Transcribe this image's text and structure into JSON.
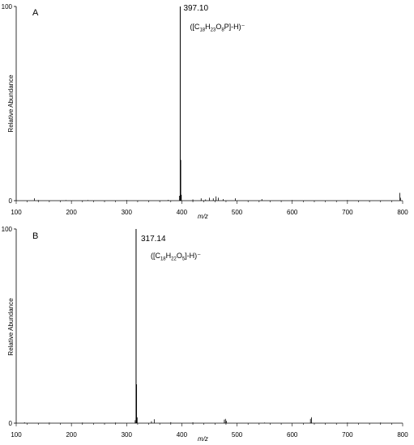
{
  "chart_data": [
    {
      "type": "line",
      "panel_label": "A",
      "xlabel": "m/z",
      "ylabel": "Relative Abundance",
      "xlim": [
        100,
        800
      ],
      "ylim": [
        0,
        100
      ],
      "xticks": [
        "100",
        "200",
        "300",
        "400",
        "500",
        "600",
        "700",
        "800"
      ],
      "yticks": [
        "0",
        "100"
      ],
      "peak_label": "397.10",
      "formula": {
        "prefix": "([C",
        "parts": [
          [
            "18",
            "H"
          ],
          [
            "23",
            "O"
          ],
          [
            "8",
            "P]-H)"
          ]
        ],
        "suffix": "⁻"
      },
      "peaks": [
        {
          "x": 133,
          "y": 1.2
        },
        {
          "x": 140,
          "y": 0.3
        },
        {
          "x": 190,
          "y": 0.3
        },
        {
          "x": 230,
          "y": 0.3
        },
        {
          "x": 300,
          "y": 0.3
        },
        {
          "x": 375,
          "y": 0.4
        },
        {
          "x": 395.5,
          "y": 2.5
        },
        {
          "x": 397.1,
          "y": 100
        },
        {
          "x": 398.1,
          "y": 21
        },
        {
          "x": 399.1,
          "y": 3
        },
        {
          "x": 420,
          "y": 0.6
        },
        {
          "x": 435,
          "y": 1.2
        },
        {
          "x": 443,
          "y": 0.6
        },
        {
          "x": 450,
          "y": 1.5
        },
        {
          "x": 457,
          "y": 1.2
        },
        {
          "x": 462,
          "y": 2.2
        },
        {
          "x": 466,
          "y": 1.5
        },
        {
          "x": 475,
          "y": 0.8
        },
        {
          "x": 497,
          "y": 1.2
        },
        {
          "x": 545,
          "y": 0.8
        },
        {
          "x": 600,
          "y": 0.3
        },
        {
          "x": 700,
          "y": 0.3
        },
        {
          "x": 795,
          "y": 4
        },
        {
          "x": 796,
          "y": 1.5
        }
      ]
    },
    {
      "type": "line",
      "panel_label": "B",
      "xlabel": "m/z",
      "ylabel": "Relative Abundance",
      "xlim": [
        100,
        800
      ],
      "ylim": [
        0,
        100
      ],
      "xticks": [
        "100",
        "200",
        "300",
        "400",
        "500",
        "600",
        "700",
        "800"
      ],
      "yticks": [
        "0",
        "100"
      ],
      "peak_label": "317.14",
      "formula": {
        "prefix": "([C",
        "parts": [
          [
            "18",
            "H"
          ],
          [
            "22",
            "O"
          ],
          [
            "5",
            "]-H)"
          ]
        ],
        "suffix": "⁻"
      },
      "peaks": [
        {
          "x": 115,
          "y": 0.4
        },
        {
          "x": 160,
          "y": 0.3
        },
        {
          "x": 220,
          "y": 0.3
        },
        {
          "x": 280,
          "y": 0.3
        },
        {
          "x": 315.5,
          "y": 1.5
        },
        {
          "x": 317.14,
          "y": 100
        },
        {
          "x": 318.1,
          "y": 20
        },
        {
          "x": 319.1,
          "y": 3
        },
        {
          "x": 345,
          "y": 1.0
        },
        {
          "x": 350,
          "y": 2.0
        },
        {
          "x": 380,
          "y": 0.5
        },
        {
          "x": 420,
          "y": 0.4
        },
        {
          "x": 477,
          "y": 1.8
        },
        {
          "x": 479,
          "y": 2.2
        },
        {
          "x": 481,
          "y": 1.2
        },
        {
          "x": 550,
          "y": 0.3
        },
        {
          "x": 633,
          "y": 2.2
        },
        {
          "x": 635,
          "y": 3.0
        },
        {
          "x": 700,
          "y": 0.3
        },
        {
          "x": 760,
          "y": 0.3
        }
      ]
    }
  ]
}
